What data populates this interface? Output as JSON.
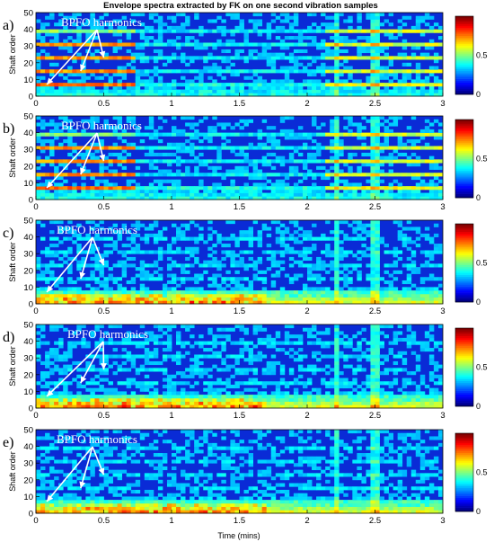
{
  "chart_data": {
    "type": "heatmap",
    "title": "Envelope spectra extracted by FK on one second vibration samples",
    "xlabel": "Time (mins)",
    "ylabel": "Shaft order",
    "xlim": [
      0,
      3
    ],
    "ylim": [
      0,
      50
    ],
    "x_ticks": [
      "0",
      "0.5",
      "1",
      "1.5",
      "2",
      "2.5",
      "3"
    ],
    "y_ticks": [
      "0",
      "10",
      "20",
      "30",
      "40",
      "50"
    ],
    "colormap": "jet",
    "colorbar_ticks": [
      "0",
      "0.5"
    ],
    "colorbar_range": [
      0,
      1
    ],
    "colors": {
      "low": "#00008b",
      "mid_low": "#0050ff",
      "mid": "#00ffff",
      "mid_high": "#ffff00",
      "high": "#ff0000",
      "max": "#8b0000"
    },
    "panels": [
      {
        "label": "a)",
        "annotation": "BPFO harmonics",
        "harmonic_orders": [
          7,
          15,
          23,
          31,
          39
        ],
        "description_regions": [
          {
            "x": [
              0,
              0.72
            ],
            "feature": "strong BPFO harmonic lines"
          },
          {
            "x": [
              0.72,
              2.15
            ],
            "feature": "weaker broadband"
          },
          {
            "x": [
              2.15,
              3.0
            ],
            "feature": "renewed harmonic lines"
          }
        ]
      },
      {
        "label": "b)",
        "annotation": "BPFO harmonics",
        "harmonic_orders": [
          7,
          15,
          23,
          31,
          39
        ],
        "description_regions": [
          {
            "x": [
              0,
              0.72
            ],
            "feature": "strong BPFO harmonic lines"
          },
          {
            "x": [
              0.72,
              2.15
            ],
            "feature": "weaker broadband"
          },
          {
            "x": [
              2.15,
              3.0
            ],
            "feature": "renewed harmonic lines"
          }
        ]
      },
      {
        "label": "c)",
        "annotation": "BPFO harmonics",
        "harmonic_orders": [
          7,
          15,
          23,
          31,
          39
        ],
        "description_regions": [
          {
            "x": [
              0,
              0.72
            ],
            "feature": "low order energy high"
          },
          {
            "x": [
              0.72,
              3.0
            ],
            "feature": "diffuse"
          }
        ]
      },
      {
        "label": "d)",
        "annotation": "BPFO harmonics",
        "harmonic_orders": [
          7,
          15,
          23,
          31,
          39
        ],
        "description_regions": [
          {
            "x": [
              0,
              0.72
            ],
            "feature": "low order energy high"
          },
          {
            "x": [
              0.72,
              3.0
            ],
            "feature": "diffuse"
          }
        ]
      },
      {
        "label": "e)",
        "annotation": "BPFO harmonics",
        "harmonic_orders": [
          7,
          15,
          23,
          31,
          39
        ],
        "description_regions": [
          {
            "x": [
              0,
              0.72
            ],
            "feature": "low order energy high"
          },
          {
            "x": [
              0.72,
              3.0
            ],
            "feature": "diffuse"
          }
        ]
      }
    ]
  }
}
